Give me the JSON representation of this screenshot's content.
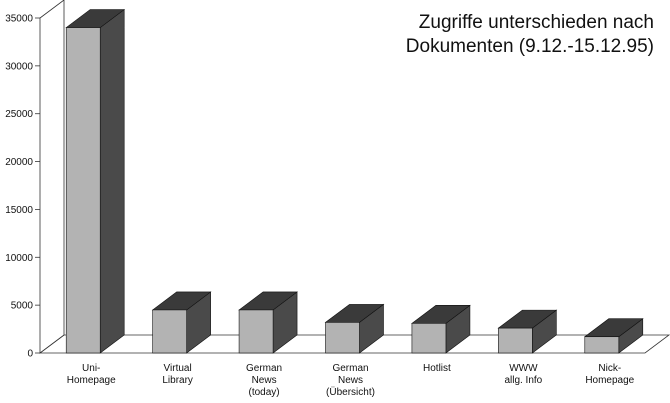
{
  "chart_data": {
    "type": "bar",
    "title_lines": [
      "Zugriffe unterschieden nach",
      "Dokumenten (9.12.-15.12.95)"
    ],
    "xlabel": "",
    "ylabel": "",
    "ylim": [
      0,
      35000
    ],
    "y_ticks": [
      "0",
      "5000",
      "10000",
      "15000",
      "20000",
      "25000",
      "30000",
      "35000"
    ],
    "categories": [
      [
        "Uni-",
        "Homepage"
      ],
      [
        "Virtual",
        "Library"
      ],
      [
        "German",
        "News",
        "(today)"
      ],
      [
        "German",
        "News",
        "(Übersicht)"
      ],
      [
        "Hotlist"
      ],
      [
        "WWW",
        "allg. Info"
      ],
      [
        "Nick-",
        "Homepage"
      ]
    ],
    "values": [
      34000,
      4500,
      4500,
      3200,
      3100,
      2600,
      1700
    ],
    "grid": false,
    "legend": "none",
    "colors": {
      "bar_front": "#b3b3b3",
      "bar_top": "#3a3a3a",
      "bar_side": "#4a4a4a",
      "back_wall": "#ffffff",
      "floor": "#ffffff",
      "axis": "#333333"
    }
  }
}
